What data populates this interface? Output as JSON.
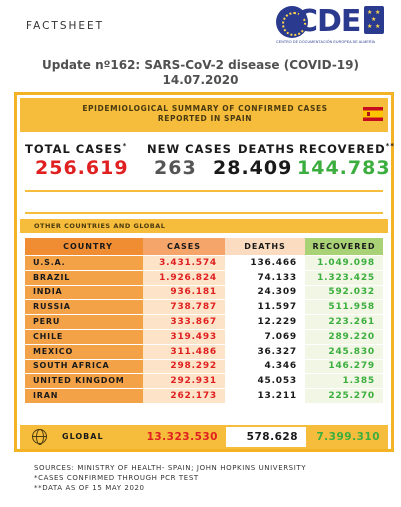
{
  "header": {
    "factsheet_label": "FACTSHEET",
    "logo_text": "CDE",
    "logo_subtitle": "CENTRO DE DOCUMENTACIÓN EUROPEA DE ALMERÍA",
    "update_line1": "Update nº162: SARS-CoV-2 disease (COVID-19)",
    "update_line2": "14.07.2020"
  },
  "spain": {
    "banner_line1": "EPIDEMIOLOGICAL SUMMARY OF CONFIRMED CASES",
    "banner_line2": "REPORTED IN SPAIN",
    "total_label": "TOTAL CASES",
    "total_mark": "*",
    "new_label": "NEW CASES",
    "deaths_label": "DEATHS",
    "recovered_label": "RECOVERED",
    "recovered_mark": "**",
    "total_value": "256.619",
    "new_value": "263",
    "deaths_value": "28.409",
    "recovered_value": "144.783"
  },
  "colors": {
    "total": "#e02020",
    "new": "#555555",
    "deaths": "#1a1a1a",
    "recovered": "#3cae3f",
    "accent": "#f6bd3c",
    "frame": "#f4b225"
  },
  "other": {
    "section_label": "OTHER COUNTRIES AND GLOBAL",
    "columns": [
      "COUNTRY",
      "CASES",
      "DEATHS",
      "RECOVERED"
    ],
    "rows": [
      {
        "country": "U.S.A.",
        "cases": "3.431.574",
        "deaths": "136.466",
        "recovered": "1.049.098"
      },
      {
        "country": "BRAZIL",
        "cases": "1.926.824",
        "deaths": "74.133",
        "recovered": "1.323.425"
      },
      {
        "country": "INDIA",
        "cases": "936.181",
        "deaths": "24.309",
        "recovered": "592.032"
      },
      {
        "country": "RUSSIA",
        "cases": "738.787",
        "deaths": "11.597",
        "recovered": "511.958"
      },
      {
        "country": "PERU",
        "cases": "333.867",
        "deaths": "12.229",
        "recovered": "223.261"
      },
      {
        "country": "CHILE",
        "cases": "319.493",
        "deaths": "7.069",
        "recovered": "289.220"
      },
      {
        "country": "MEXICO",
        "cases": "311.486",
        "deaths": "36.327",
        "recovered": "245.830"
      },
      {
        "country": "SOUTH AFRICA",
        "cases": "298.292",
        "deaths": "4.346",
        "recovered": "146.279"
      },
      {
        "country": "UNITED KINGDOM",
        "cases": "292.931",
        "deaths": "45.053",
        "recovered": "1.385"
      },
      {
        "country": "IRAN",
        "cases": "262.173",
        "deaths": "13.211",
        "recovered": "225.270"
      }
    ],
    "global": {
      "label": "GLOBAL",
      "cases": "13.323.530",
      "deaths": "578.628",
      "recovered": "7.399.310"
    }
  },
  "notes": {
    "sources": "SOURCES: MINISTRY OF HEALTH- SPAIN; JOHN HOPKINS UNIVERSITY",
    "note1": "*CASES CONFIRMED THROUGH PCR TEST",
    "note2": "**DATA AS OF 15 MAY 2020"
  }
}
